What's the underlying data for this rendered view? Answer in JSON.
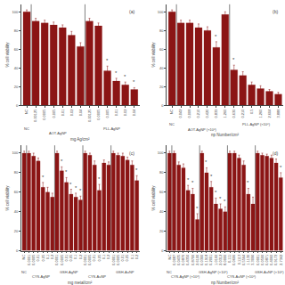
{
  "chart_data": [
    {
      "type": "bar",
      "label": "(a)",
      "xlabel": "mg Ag/cm²",
      "ylabel": "% cell viability",
      "color": "#8B1515",
      "ylim": [
        0,
        108
      ],
      "yticks": [
        0,
        20,
        40,
        60,
        80,
        100
      ],
      "grid": false,
      "groups": [
        {
          "name": "NC",
          "categories": [
            "NC"
          ],
          "values": [
            100
          ],
          "errors": [
            2
          ],
          "stars": [
            null
          ]
        },
        {
          "name": "AOT-AgNP",
          "categories": [
            "0.00125",
            "0.0005",
            "0.005",
            "0.01",
            "0.02",
            "0.04"
          ],
          "values": [
            90,
            88,
            86,
            83,
            75,
            63
          ],
          "errors": [
            3,
            3,
            3,
            3,
            4,
            4
          ],
          "stars": [
            null,
            null,
            null,
            null,
            null,
            null
          ]
        },
        {
          "name": "PLL-AgNP",
          "categories": [
            "0.00125",
            "0.0005",
            "0.005",
            "0.01",
            "0.02",
            "0.04"
          ],
          "values": [
            90,
            85,
            37,
            26,
            22,
            17
          ],
          "errors": [
            3,
            3,
            5,
            3,
            3,
            2
          ],
          "stars": [
            null,
            null,
            "*",
            "*",
            "*",
            "*"
          ]
        }
      ]
    },
    {
      "type": "bar",
      "label": "(b)",
      "xlabel": "np Number/cm²",
      "ylabel": "% cell viability",
      "color": "#8B1515",
      "ylim": [
        0,
        108
      ],
      "yticks": [
        0,
        20,
        40,
        60,
        80,
        100
      ],
      "grid": false,
      "groups": [
        {
          "name": "NC",
          "categories": [
            "NC"
          ],
          "values": [
            100
          ],
          "errors": [
            2
          ],
          "stars": [
            null
          ]
        },
        {
          "name": "AOT-AgNP (×10⁶)",
          "categories": [
            "0.042",
            "0.008",
            "0.210",
            "0.420",
            "0.839",
            "1.260"
          ],
          "values": [
            88,
            88,
            83,
            80,
            62,
            97
          ],
          "errors": [
            3,
            3,
            4,
            4,
            6,
            3
          ],
          "stars": [
            null,
            null,
            null,
            null,
            "*",
            null
          ]
        },
        {
          "name": "PLL-AgNP (×10⁶)",
          "categories": [
            "0.630",
            "0.210",
            "0.5",
            "1.260",
            "2.604",
            "3.888"
          ],
          "values": [
            38,
            32,
            22,
            18,
            15,
            12
          ],
          "errors": [
            5,
            4,
            3,
            3,
            2,
            2
          ],
          "stars": [
            "*",
            null,
            null,
            null,
            null,
            null
          ]
        }
      ]
    },
    {
      "type": "bar",
      "label": "(c)",
      "xlabel": "mg metal/cm²",
      "ylabel": "% cell viability",
      "color": "#8B1515",
      "ylim": [
        0,
        108
      ],
      "yticks": [
        0,
        20,
        40,
        60,
        80,
        100
      ],
      "grid": false,
      "groups": [
        {
          "name": "NC",
          "categories": [
            "NC"
          ],
          "values": [
            100
          ],
          "errors": [
            2
          ],
          "stars": [
            null
          ]
        },
        {
          "name": "CYS-AgNP",
          "categories": [
            "0.0001",
            "0.0005",
            "0.01",
            "0.05",
            "0.1",
            "0.2"
          ],
          "values": [
            100,
            97,
            92,
            65,
            60,
            55
          ],
          "errors": [
            2,
            3,
            3,
            5,
            5,
            4
          ],
          "stars": [
            null,
            null,
            null,
            "*",
            null,
            null
          ]
        },
        {
          "name": "GSH-AgNP",
          "categories": [
            "0.0001",
            "0.0005",
            "0.01",
            "0.05",
            "0.1",
            "0.2"
          ],
          "values": [
            100,
            82,
            70,
            58,
            55,
            52
          ],
          "errors": [
            2,
            4,
            5,
            5,
            4,
            4
          ],
          "stars": [
            null,
            "*",
            "*",
            "*",
            "*",
            "*"
          ]
        },
        {
          "name": "CYS-AuNP",
          "categories": [
            "0.0001",
            "0.0005",
            "0.01",
            "0.05",
            "0.1",
            "0.2"
          ],
          "values": [
            100,
            98,
            88,
            62,
            90,
            88
          ],
          "errors": [
            2,
            2,
            4,
            6,
            3,
            3
          ],
          "stars": [
            null,
            null,
            null,
            "*",
            null,
            null
          ]
        },
        {
          "name": "GSH-AuNP",
          "categories": [
            "0.0001",
            "0.0005",
            "0.01",
            "0.05",
            "0.1",
            "0.2"
          ],
          "values": [
            100,
            98,
            97,
            93,
            88,
            72
          ],
          "errors": [
            2,
            2,
            3,
            3,
            4,
            5
          ],
          "stars": [
            null,
            null,
            null,
            null,
            null,
            "*"
          ]
        }
      ]
    },
    {
      "type": "bar",
      "label": "(d)",
      "xlabel": "np Number/cm²",
      "ylabel": "% cell viability",
      "color": "#8B1515",
      "ylim": [
        0,
        108
      ],
      "yticks": [
        0,
        20,
        40,
        60,
        80,
        100
      ],
      "grid": false,
      "groups": [
        {
          "name": "NC",
          "categories": [
            "NC"
          ],
          "values": [
            100
          ],
          "errors": [
            2
          ],
          "stars": [
            null
          ]
        },
        {
          "name": "CYS-AgNP (×10⁶)",
          "categories": [
            "0.0087",
            "0.0435",
            "0.0870",
            "0.4350",
            "0.8700",
            "2.6100"
          ],
          "values": [
            100,
            88,
            85,
            62,
            58,
            32
          ],
          "errors": [
            2,
            3,
            4,
            5,
            6,
            6
          ],
          "stars": [
            null,
            null,
            null,
            "*",
            "*",
            "*"
          ]
        },
        {
          "name": "GSH-AgNP (×10⁶)",
          "categories": [
            "0.0300",
            "0.1918",
            "0.2001",
            "1.0160",
            "2.0312",
            "8.0000"
          ],
          "values": [
            100,
            80,
            65,
            48,
            43,
            40
          ],
          "errors": [
            2,
            5,
            6,
            6,
            5,
            5
          ],
          "stars": [
            null,
            "*",
            "*",
            "*",
            "*",
            "*"
          ]
        },
        {
          "name": "CYS-AuNP (×10⁶)",
          "categories": [
            "0.111",
            "0.0606",
            "0.1113",
            "0.5564",
            "1.1130",
            "3.3090"
          ],
          "values": [
            100,
            100,
            95,
            88,
            58,
            48
          ],
          "errors": [
            2,
            2,
            3,
            4,
            6,
            7
          ],
          "stars": [
            null,
            null,
            null,
            null,
            "*",
            null
          ]
        },
        {
          "name": "GSH-AuNP (×10⁶)",
          "categories": [
            "0.0001",
            "0.0500",
            "0.0871",
            "0.4060",
            "0.9172",
            "2.7342"
          ],
          "values": [
            100,
            98,
            97,
            95,
            90,
            75
          ],
          "errors": [
            2,
            2,
            2,
            3,
            4,
            5
          ],
          "stars": [
            null,
            null,
            null,
            null,
            null,
            "*"
          ]
        }
      ]
    }
  ]
}
